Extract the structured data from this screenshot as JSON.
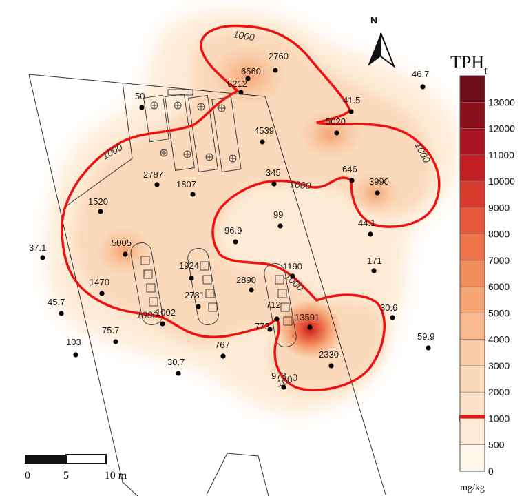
{
  "legend": {
    "title": "TPH",
    "subscript": "t",
    "unit": "mg/kg",
    "classes": [
      {
        "value": "13000",
        "color": "#6e0d1a"
      },
      {
        "value": "12000",
        "color": "#8a101d"
      },
      {
        "value": "11000",
        "color": "#a81422"
      },
      {
        "value": "10000",
        "color": "#c21f24"
      },
      {
        "value": "9000",
        "color": "#d83a2e"
      },
      {
        "value": "8000",
        "color": "#e8593c"
      },
      {
        "value": "7000",
        "color": "#ef7349"
      },
      {
        "value": "6000",
        "color": "#f28e5c"
      },
      {
        "value": "5000",
        "color": "#f5a473"
      },
      {
        "value": "4000",
        "color": "#f8ba8e"
      },
      {
        "value": "3000",
        "color": "#f9cba6"
      },
      {
        "value": "2000",
        "color": "#fbd9bb"
      },
      {
        "value": "1000",
        "color": "#fce3c8",
        "isoline": true
      },
      {
        "value": "500",
        "color": "#fdebd6"
      },
      {
        "value": "0",
        "color": "#fef6ea"
      }
    ],
    "isoline_color": "#ee1111"
  },
  "north": {
    "label": "N"
  },
  "scale_bar": {
    "labels": [
      "0",
      "5",
      "10 m"
    ]
  },
  "isoline_labels": [
    "1000",
    "1000",
    "1000",
    "1000",
    "1000",
    "1000",
    "1000",
    "1000"
  ],
  "sample_points": [
    {
      "label": "6560"
    },
    {
      "label": "2760"
    },
    {
      "label": "6212"
    },
    {
      "label": "46.7"
    },
    {
      "label": "50"
    },
    {
      "label": "41.5"
    },
    {
      "label": "4539"
    },
    {
      "label": "5020"
    },
    {
      "label": "2787"
    },
    {
      "label": "1807"
    },
    {
      "label": "345"
    },
    {
      "label": "646"
    },
    {
      "label": "3990"
    },
    {
      "label": "1520"
    },
    {
      "label": "99"
    },
    {
      "label": "44.1"
    },
    {
      "label": "96.9"
    },
    {
      "label": "37.1"
    },
    {
      "label": "5005"
    },
    {
      "label": "1190"
    },
    {
      "label": "171"
    },
    {
      "label": "1924"
    },
    {
      "label": "2890"
    },
    {
      "label": "1470"
    },
    {
      "label": "2781"
    },
    {
      "label": "45.7"
    },
    {
      "label": "1002"
    },
    {
      "label": "712"
    },
    {
      "label": "13591"
    },
    {
      "label": "30.6"
    },
    {
      "label": "773"
    },
    {
      "label": "75.7"
    },
    {
      "label": "103"
    },
    {
      "label": "767"
    },
    {
      "label": "59.9"
    },
    {
      "label": "2330"
    },
    {
      "label": "30.7"
    },
    {
      "label": "973"
    }
  ]
}
